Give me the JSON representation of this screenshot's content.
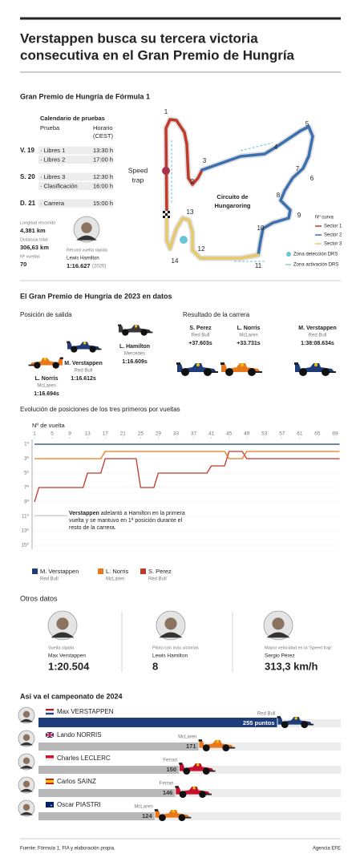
{
  "header": {
    "title": [
      "Verstappen busca su tercera victoria",
      "consecutiva en el Gran Premio de Hungría"
    ]
  },
  "circuit": {
    "title": "Gran Premio de Hungría de Fórmula 1",
    "schedule": {
      "title": "Calendario de pruebas",
      "headers": [
        "Prueba",
        "Horario",
        "(CEST)"
      ],
      "days": [
        {
          "day": "V. 19",
          "sessions": [
            [
              "· Libres 1",
              "13:30 h"
            ],
            [
              "· Libres 2",
              "17:00 h"
            ]
          ]
        },
        {
          "day": "S. 20",
          "sessions": [
            [
              "· Libres 3",
              "12:30 h"
            ],
            [
              "· Clasificación",
              "16:00 h"
            ]
          ]
        },
        {
          "day": "D. 21",
          "sessions": [
            [
              "· Carrera",
              "15:00 h"
            ]
          ]
        }
      ]
    },
    "stats": [
      {
        "label": "Longitud recorrido",
        "value": "4,381 km"
      },
      {
        "label": "Distancia total",
        "value": "306,63 km"
      },
      {
        "label": "Nº vueltas",
        "value": "70"
      }
    ],
    "record": {
      "label": "Récord vuelta rápida",
      "driver": "Lewis Hamilton",
      "time": "1:16.627",
      "year": "(2020)"
    },
    "map": {
      "name": [
        "Circuito de",
        "Hungaroring"
      ],
      "speed_trap": [
        "Speed",
        "trap"
      ],
      "curves": [
        1,
        2,
        3,
        4,
        5,
        6,
        7,
        8,
        9,
        10,
        11,
        12,
        13,
        14
      ],
      "legend_title": "Nº curva",
      "sectors": [
        {
          "name": "Sector 1",
          "color": "#c0392b"
        },
        {
          "name": "Sector 2",
          "color": "#3a6fb0"
        },
        {
          "name": "Sector 3",
          "color": "#e8c96a"
        }
      ],
      "drs_detection": "Zona detección DRS",
      "drs_activation": "Zona activación DRS"
    }
  },
  "race2023": {
    "title": "El Gran Premio de Hungría de 2023 en datos",
    "grid": {
      "title": "Posición de salida",
      "drivers": [
        {
          "name": "L. Hamilton",
          "team": "Mercedes",
          "time": "1:16.609s"
        },
        {
          "name": "M. Verstappen",
          "team": "Red Bull",
          "time": "1:16.612s"
        },
        {
          "name": "L. Norris",
          "team": "McLaren",
          "time": "1:16.694s"
        }
      ]
    },
    "result": {
      "title": "Resultado de la carrera",
      "drivers": [
        {
          "name": "S. Perez",
          "team": "Red Bull",
          "time": "+37.603s"
        },
        {
          "name": "L. Norris",
          "team": "McLaren",
          "time": "+33.731s"
        },
        {
          "name": "M. Verstappen",
          "team": "Red Bull",
          "time": "1:38:08.634s"
        }
      ]
    }
  },
  "other": {
    "title": "Otros datos",
    "items": [
      {
        "label": "Vuelta rápida",
        "name": "Max Verstappen",
        "value": "1:20.504"
      },
      {
        "label": "Piloto con más victorias",
        "name": "Lewis Hamilton",
        "value": "8"
      },
      {
        "label": "Mayor velocidad en la 'Speed trap'",
        "name": "Sergio Pérez",
        "value": "313,3 km/h"
      }
    ]
  },
  "chart_data": [
    {
      "type": "line",
      "title": "Evolución de posiciones de los tres primeros por vueltas",
      "xlabel": "Nº de vuelta",
      "x": [
        1,
        2,
        3,
        4,
        5,
        6,
        7,
        8,
        9,
        10,
        11,
        12,
        13,
        14,
        15,
        16,
        17,
        18,
        19,
        20,
        21,
        22,
        23,
        24,
        25,
        26,
        27,
        28,
        29,
        30,
        31,
        32,
        33,
        34,
        35,
        36,
        37,
        38,
        39,
        40,
        41,
        42,
        43,
        44,
        45,
        46,
        47,
        48,
        49,
        50,
        51,
        52,
        53,
        54,
        55,
        56,
        57,
        58,
        59,
        60,
        61,
        62,
        63,
        64,
        65,
        66,
        67,
        68,
        69,
        70
      ],
      "xlim": [
        1,
        70
      ],
      "xticks": [
        1,
        5,
        9,
        13,
        17,
        21,
        25,
        29,
        33,
        37,
        41,
        45,
        49,
        53,
        57,
        61,
        65,
        69
      ],
      "ylim": [
        16,
        0
      ],
      "yticks": [
        {
          "value": 1,
          "label": "1º"
        },
        {
          "value": 3,
          "label": "3º"
        },
        {
          "value": 5,
          "label": "5º"
        },
        {
          "value": 7,
          "label": "7º"
        },
        {
          "value": 9,
          "label": "9º"
        },
        {
          "value": 11,
          "label": "11º"
        },
        {
          "value": 13,
          "label": "13º"
        },
        {
          "value": 15,
          "label": "15º"
        }
      ],
      "grid": true,
      "annotation_bold": "Verstappen",
      "annotation": "adelantó a Hamilton en la primera vuelta y se mantuvo en 1ª posición durante el resto de la carrera.",
      "series": [
        {
          "name": "M. Verstappen",
          "team": "Red Bull",
          "color": "#1f3d7a",
          "values": [
            1,
            1,
            1,
            1,
            1,
            1,
            1,
            1,
            1,
            1,
            1,
            1,
            1,
            1,
            1,
            1,
            1,
            1,
            1,
            1,
            1,
            1,
            1,
            1,
            1,
            1,
            1,
            1,
            1,
            1,
            1,
            1,
            1,
            1,
            1,
            1,
            1,
            1,
            1,
            1,
            1,
            1,
            1,
            1,
            1,
            1,
            1,
            1,
            1,
            1,
            1,
            1,
            1,
            1,
            1,
            1,
            1,
            1,
            1,
            1,
            1,
            1,
            1,
            1,
            1,
            1,
            1,
            1,
            1,
            1
          ]
        },
        {
          "name": "L. Norris",
          "team": "McLaren",
          "color": "#e8781e",
          "values": [
            3,
            3,
            3,
            3,
            3,
            3,
            3,
            3,
            3,
            3,
            3,
            3,
            3,
            3,
            3,
            3,
            2,
            2,
            2,
            2,
            2,
            2,
            2,
            2,
            2,
            2,
            2,
            2,
            2,
            2,
            2,
            2,
            2,
            2,
            2,
            2,
            2,
            2,
            2,
            2,
            2,
            2,
            2,
            2,
            3,
            3,
            3,
            3,
            2,
            2,
            2,
            2,
            2,
            2,
            2,
            2,
            2,
            2,
            2,
            2,
            2,
            2,
            2,
            2,
            2,
            2,
            2,
            2,
            2,
            2
          ]
        },
        {
          "name": "S. Perez",
          "team": "Red Bull",
          "color": "#c0392b",
          "values": [
            9,
            7,
            7,
            7,
            7,
            7,
            7,
            7,
            7,
            7,
            7,
            7,
            5,
            5,
            5,
            5,
            3,
            3,
            3,
            3,
            3,
            3,
            3,
            3,
            7,
            7,
            7,
            7,
            5,
            5,
            5,
            5,
            5,
            5,
            5,
            5,
            5,
            5,
            5,
            5,
            4,
            4,
            4,
            4,
            2,
            2,
            2,
            2,
            3,
            3,
            3,
            3,
            3,
            3,
            3,
            3,
            3,
            3,
            3,
            3,
            3,
            3,
            3,
            3,
            3,
            3,
            3,
            3,
            3,
            3
          ]
        }
      ]
    },
    {
      "type": "barh",
      "title": "Así va el campeonato de 2024",
      "categories": [
        "Max VERSTAPPEN",
        "Lando NORRIS",
        "Charles LECLERC",
        "Carlos SAINZ",
        "Oscar PIASTRI"
      ],
      "teams": [
        "Red Bull",
        "McLaren",
        "Ferrari",
        "Ferrari",
        "McLaren"
      ],
      "values": [
        255,
        171,
        150,
        146,
        124
      ],
      "value_labels": [
        "255 puntos",
        "171",
        "150",
        "146",
        "124"
      ],
      "colors": [
        "#1f3d7a",
        "#b8b8b8",
        "#b8b8b8",
        "#b8b8b8",
        "#b8b8b8"
      ],
      "xlim": [
        0,
        300
      ]
    }
  ],
  "footer": {
    "source": "Fuente: Fórmula 1, FIA y elaboración propia.",
    "agency": "Agencia EFE"
  }
}
